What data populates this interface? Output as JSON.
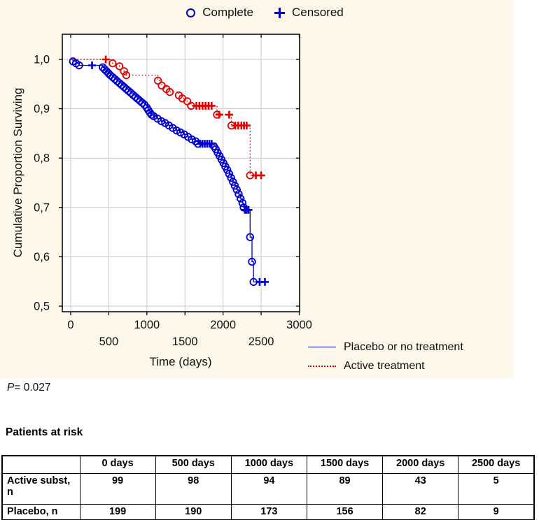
{
  "colors": {
    "placebo": "#0000cd",
    "active": "#e00000",
    "figure_background": "#fdf8e9",
    "plot_background": "#ffffff",
    "grid": "#c9c9c9",
    "axis": "#000000"
  },
  "p_stat": {
    "text": "P= 0.027",
    "symbol": "P",
    "rest": "= 0.027"
  },
  "chart_data": {
    "type": "line",
    "subtype": "kaplan-meier-step",
    "step": "after",
    "title": "",
    "x_axis": {
      "label": "Time (days)",
      "range": [
        0,
        3000
      ],
      "ticks": [
        0,
        500,
        1000,
        1500,
        2000,
        2500,
        3000
      ],
      "grid": true
    },
    "y_axis": {
      "label": "Cumulative Proportion Surviving",
      "range": [
        0.5,
        1.0
      ],
      "ticks": [
        {
          "v": 1.0,
          "label": "1,0"
        },
        {
          "v": 0.9,
          "label": "0,9"
        },
        {
          "v": 0.8,
          "label": "0,8"
        },
        {
          "v": 0.7,
          "label": "0,7"
        },
        {
          "v": 0.6,
          "label": "0,6"
        },
        {
          "v": 0.5,
          "label": "0,5"
        }
      ],
      "grid": true
    },
    "marker_legend": [
      {
        "label": "Complete",
        "marker": "circle"
      },
      {
        "label": "Censored",
        "marker": "plus"
      }
    ],
    "legend_position": "bottom-right",
    "series": [
      {
        "name": "Placebo or no treatment",
        "color": "#0000cd",
        "line": "solid",
        "points": [
          [
            0,
            1.0,
            ""
          ],
          [
            30,
            0.996,
            "c"
          ],
          [
            70,
            0.992,
            "c"
          ],
          [
            110,
            0.988,
            "c"
          ],
          [
            280,
            0.988,
            "p"
          ],
          [
            420,
            0.984,
            "c"
          ],
          [
            445,
            0.98,
            "c"
          ],
          [
            470,
            0.976,
            "c"
          ],
          [
            495,
            0.972,
            "c"
          ],
          [
            520,
            0.968,
            "c"
          ],
          [
            550,
            0.964,
            "c"
          ],
          [
            580,
            0.96,
            "c"
          ],
          [
            610,
            0.956,
            "c"
          ],
          [
            640,
            0.952,
            "c"
          ],
          [
            670,
            0.948,
            "c"
          ],
          [
            700,
            0.944,
            "c"
          ],
          [
            730,
            0.94,
            "c"
          ],
          [
            760,
            0.936,
            "c"
          ],
          [
            790,
            0.932,
            "c"
          ],
          [
            820,
            0.928,
            "c"
          ],
          [
            850,
            0.924,
            "c"
          ],
          [
            880,
            0.92,
            "c"
          ],
          [
            910,
            0.916,
            "c"
          ],
          [
            940,
            0.912,
            "c"
          ],
          [
            970,
            0.908,
            "c"
          ],
          [
            1000,
            0.902,
            "c"
          ],
          [
            1020,
            0.897,
            "c"
          ],
          [
            1040,
            0.892,
            "c"
          ],
          [
            1060,
            0.888,
            "c"
          ],
          [
            1090,
            0.885,
            "c"
          ],
          [
            1140,
            0.88,
            "c"
          ],
          [
            1190,
            0.875,
            "c"
          ],
          [
            1240,
            0.871,
            "c"
          ],
          [
            1290,
            0.866,
            "c"
          ],
          [
            1340,
            0.861,
            "c"
          ],
          [
            1390,
            0.856,
            "c"
          ],
          [
            1440,
            0.852,
            "c"
          ],
          [
            1490,
            0.848,
            "c"
          ],
          [
            1540,
            0.843,
            "c"
          ],
          [
            1590,
            0.838,
            "c"
          ],
          [
            1640,
            0.834,
            "c"
          ],
          [
            1670,
            0.829,
            "c"
          ],
          [
            1700,
            0.829,
            "p"
          ],
          [
            1730,
            0.829,
            "p"
          ],
          [
            1760,
            0.829,
            "p"
          ],
          [
            1790,
            0.829,
            "p"
          ],
          [
            1820,
            0.829,
            "p"
          ],
          [
            1850,
            0.829,
            "p"
          ],
          [
            1880,
            0.824,
            "c"
          ],
          [
            1905,
            0.818,
            "c"
          ],
          [
            1930,
            0.811,
            "c"
          ],
          [
            1955,
            0.804,
            "c"
          ],
          [
            1980,
            0.797,
            "c"
          ],
          [
            2005,
            0.79,
            "c"
          ],
          [
            2030,
            0.783,
            "c"
          ],
          [
            2055,
            0.776,
            "c"
          ],
          [
            2080,
            0.768,
            "c"
          ],
          [
            2105,
            0.76,
            "c"
          ],
          [
            2130,
            0.752,
            "c"
          ],
          [
            2155,
            0.744,
            "c"
          ],
          [
            2180,
            0.736,
            "c"
          ],
          [
            2205,
            0.727,
            "c"
          ],
          [
            2230,
            0.718,
            "c"
          ],
          [
            2255,
            0.709,
            "c"
          ],
          [
            2270,
            0.7,
            "c"
          ],
          [
            2285,
            0.695,
            "p"
          ],
          [
            2310,
            0.695,
            "p"
          ],
          [
            2335,
            0.695,
            "p"
          ],
          [
            2355,
            0.64,
            "c"
          ],
          [
            2380,
            0.59,
            "c"
          ],
          [
            2400,
            0.549,
            "c"
          ],
          [
            2480,
            0.549,
            "p"
          ],
          [
            2550,
            0.549,
            "p"
          ]
        ]
      },
      {
        "name": "Active treatment",
        "color": "#e00000",
        "line": "dotted",
        "points": [
          [
            0,
            1.0,
            ""
          ],
          [
            460,
            1.0,
            "p"
          ],
          [
            550,
            0.992,
            "c"
          ],
          [
            640,
            0.986,
            "c"
          ],
          [
            700,
            0.976,
            "c"
          ],
          [
            730,
            0.968,
            "c"
          ],
          [
            1145,
            0.957,
            "c"
          ],
          [
            1195,
            0.947,
            "c"
          ],
          [
            1255,
            0.94,
            "c"
          ],
          [
            1300,
            0.934,
            "c"
          ],
          [
            1420,
            0.927,
            "c"
          ],
          [
            1465,
            0.921,
            "c"
          ],
          [
            1530,
            0.915,
            "c"
          ],
          [
            1580,
            0.906,
            "c"
          ],
          [
            1650,
            0.906,
            "p"
          ],
          [
            1690,
            0.906,
            "p"
          ],
          [
            1730,
            0.906,
            "p"
          ],
          [
            1770,
            0.906,
            "p"
          ],
          [
            1810,
            0.906,
            "p"
          ],
          [
            1850,
            0.906,
            "p"
          ],
          [
            1920,
            0.888,
            "c"
          ],
          [
            1950,
            0.888,
            "p"
          ],
          [
            2080,
            0.888,
            "p"
          ],
          [
            2110,
            0.866,
            "c"
          ],
          [
            2160,
            0.866,
            "p"
          ],
          [
            2200,
            0.866,
            "p"
          ],
          [
            2240,
            0.866,
            "p"
          ],
          [
            2275,
            0.866,
            "p"
          ],
          [
            2310,
            0.866,
            "p"
          ],
          [
            2355,
            0.765,
            "c"
          ],
          [
            2430,
            0.765,
            "p"
          ],
          [
            2500,
            0.765,
            "p"
          ]
        ]
      }
    ]
  },
  "risk_table": {
    "title": "Patients at risk",
    "columns": [
      "",
      "0 days",
      "500 days",
      "1000 days",
      "1500 days",
      "2000 days",
      "2500 days"
    ],
    "rows": [
      {
        "key": "active",
        "label": "Active subst, n",
        "values": [
          99,
          98,
          94,
          89,
          43,
          5
        ]
      },
      {
        "key": "placebo",
        "label": "Placebo, n",
        "values": [
          199,
          190,
          173,
          156,
          82,
          9
        ]
      }
    ]
  }
}
